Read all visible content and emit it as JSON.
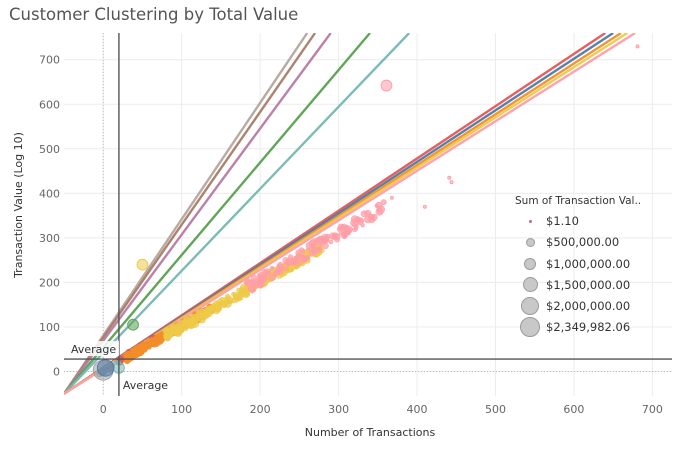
{
  "title": "Customer Clustering by Total Value",
  "chart_data": {
    "type": "scatter",
    "title": "Customer Clustering by Total Value",
    "xlabel": "Number of Transactions",
    "ylabel": "Transaction Value (Log 10)",
    "xlim": [
      -50,
      725
    ],
    "ylim": [
      -55,
      760
    ],
    "xticks": [
      "0",
      "100",
      "200",
      "300",
      "400",
      "500",
      "600",
      "700"
    ],
    "yticks": [
      "0",
      "100",
      "200",
      "300",
      "400",
      "500",
      "600",
      "700"
    ],
    "grid": true,
    "reference_lines": {
      "x_average": 20,
      "y_average": 28,
      "x_label": "Average",
      "y_label": "Average"
    },
    "trend_lines": [
      {
        "color": "#b5a59e",
        "x": [
          -50,
          260
        ],
        "y": [
          -50,
          760
        ]
      },
      {
        "color": "#a77c66",
        "x": [
          -50,
          270
        ],
        "y": [
          -50,
          760
        ]
      },
      {
        "color": "#b87aa5",
        "x": [
          -50,
          290
        ],
        "y": [
          -50,
          760
        ]
      },
      {
        "color": "#59a14f",
        "x": [
          -50,
          340
        ],
        "y": [
          -50,
          760
        ]
      },
      {
        "color": "#76b7b2",
        "x": [
          -50,
          390
        ],
        "y": [
          -50,
          760
        ]
      },
      {
        "color": "#e15759",
        "x": [
          -50,
          640
        ],
        "y": [
          -50,
          760
        ]
      },
      {
        "color": "#4e79a7",
        "x": [
          -50,
          650
        ],
        "y": [
          -50,
          760
        ]
      },
      {
        "color": "#f28e2b",
        "x": [
          -50,
          660
        ],
        "y": [
          -50,
          760
        ]
      },
      {
        "color": "#edc948",
        "x": [
          -50,
          668
        ],
        "y": [
          -50,
          760
        ]
      },
      {
        "color": "#ff9da7",
        "x": [
          -50,
          678
        ],
        "y": [
          -50,
          760
        ]
      }
    ],
    "series": [
      {
        "color": "#e15759",
        "x_range": [
          20,
          70
        ],
        "slope": 1.08,
        "intercept": 0,
        "spread": 6,
        "count": 70
      },
      {
        "color": "#f28e2b",
        "x_range": [
          30,
          140
        ],
        "slope": 1.02,
        "intercept": 0,
        "spread": 7,
        "count": 260
      },
      {
        "color": "#edc948",
        "x_range": [
          80,
          280
        ],
        "slope": 1.0,
        "intercept": 0,
        "spread": 10,
        "count": 260
      },
      {
        "color": "#ff9da7",
        "x_range": [
          180,
          360
        ],
        "slope": 1.03,
        "intercept": 0,
        "spread": 14,
        "count": 120
      },
      {
        "color": "#76b7b2",
        "x_range": [
          -2,
          25
        ],
        "slope": 1.0,
        "intercept": 0,
        "spread": 4,
        "count": 10
      },
      {
        "color": "#a0a0a0",
        "x_range": [
          -5,
          10
        ],
        "slope": 1.0,
        "intercept": 0,
        "spread": 3,
        "count": 6
      }
    ],
    "outliers": [
      {
        "x": 361,
        "y": 642,
        "color": "#ff9da7",
        "size_value": 500000
      },
      {
        "x": 681,
        "y": 730,
        "color": "#ff9da7",
        "size_value": 1.1
      },
      {
        "x": 441,
        "y": 435,
        "color": "#ff9da7",
        "size_value": 1.1
      },
      {
        "x": 444,
        "y": 425,
        "color": "#ff9da7",
        "size_value": 1.1
      },
      {
        "x": 410,
        "y": 370,
        "color": "#ff9da7",
        "size_value": 1.1
      },
      {
        "x": 368,
        "y": 390,
        "color": "#ff9da7",
        "size_value": 1.1
      },
      {
        "x": 50,
        "y": 240,
        "color": "#edc948",
        "size_value": 500000
      },
      {
        "x": 38,
        "y": 105,
        "color": "#59a14f",
        "size_value": 500000
      },
      {
        "x": 20,
        "y": 8,
        "color": "#76b7b2",
        "size_value": 500000
      },
      {
        "x": 0,
        "y": 3,
        "color": "#a0a0a0",
        "size_value": 2349982.06
      },
      {
        "x": 3,
        "y": 8,
        "color": "#4e79a7",
        "size_value": 1500000
      }
    ]
  },
  "legend": {
    "title": "Sum of Transaction Val..",
    "items": [
      {
        "label": "$1.10",
        "diameter": 3
      },
      {
        "label": "$500,000.00",
        "diameter": 9
      },
      {
        "label": "$1,000,000.00",
        "diameter": 12
      },
      {
        "label": "$1,500,000.00",
        "diameter": 15
      },
      {
        "label": "$2,000,000.00",
        "diameter": 18
      },
      {
        "label": "$2,349,982.06",
        "diameter": 20
      }
    ]
  }
}
